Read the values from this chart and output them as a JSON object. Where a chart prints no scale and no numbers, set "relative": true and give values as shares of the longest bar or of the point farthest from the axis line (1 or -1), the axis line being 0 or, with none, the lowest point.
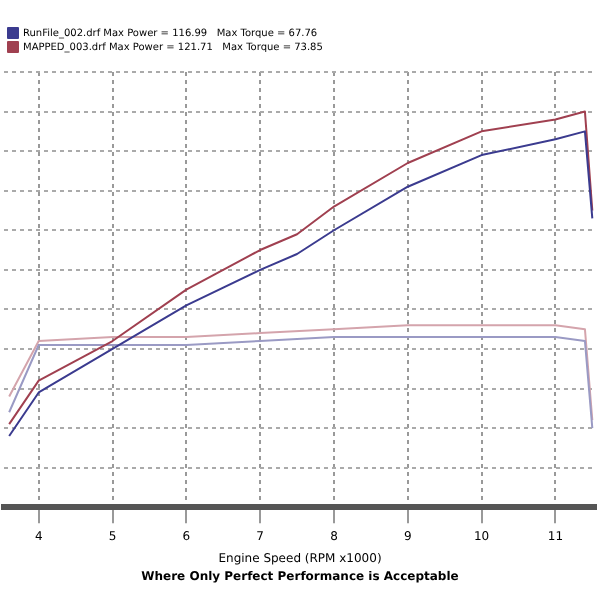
{
  "chart_data": {
    "type": "line",
    "relative": true,
    "xlabel": "Engine Speed (RPM x1000)",
    "annotations": [
      "Where Only Perfect Performance is Acceptable"
    ],
    "xlim": [
      3.53,
      11.55
    ],
    "xticks": [
      4,
      5,
      6,
      7,
      8,
      9,
      10,
      11
    ],
    "grid": true,
    "legend": "top left",
    "marker": "none",
    "line_style": "solid",
    "series": [
      {
        "name": "RunFile_002.drf Max Power = 116.99   Max Torque = 67.76",
        "color": "#3b3b8f",
        "x": [
          3.6,
          4,
          5,
          6,
          7,
          7.5,
          8,
          9,
          10,
          11,
          11.4,
          11.5
        ],
        "values": [
          0.18,
          0.29,
          0.4,
          0.51,
          0.6,
          0.64,
          0.7,
          0.81,
          0.89,
          0.93,
          0.95,
          0.73
        ]
      },
      {
        "name": "MAPPED_003.drf Max Power = 121.71   Max Torque = 73.85",
        "color": "#a04050",
        "x": [
          3.6,
          4,
          5,
          6,
          7,
          7.5,
          8,
          9,
          10,
          11,
          11.4,
          11.5
        ],
        "values": [
          0.21,
          0.32,
          0.42,
          0.55,
          0.65,
          0.69,
          0.76,
          0.87,
          0.95,
          0.98,
          1,
          0.75
        ]
      },
      {
        "color": "#9a9ac4",
        "x": [
          3.6,
          4,
          5,
          6,
          7,
          8,
          9,
          10,
          11,
          11.4,
          11.5
        ],
        "values": [
          0.24,
          0.41,
          0.41,
          0.41,
          0.42,
          0.43,
          0.43,
          0.43,
          0.43,
          0.42,
          0.2
        ]
      },
      {
        "color": "#d4a4ac",
        "x": [
          3.6,
          4,
          5,
          6,
          7,
          8,
          9,
          10,
          11,
          11.4,
          11.5
        ],
        "values": [
          0.28,
          0.42,
          0.43,
          0.43,
          0.44,
          0.45,
          0.46,
          0.46,
          0.46,
          0.45,
          0.22
        ]
      }
    ]
  }
}
